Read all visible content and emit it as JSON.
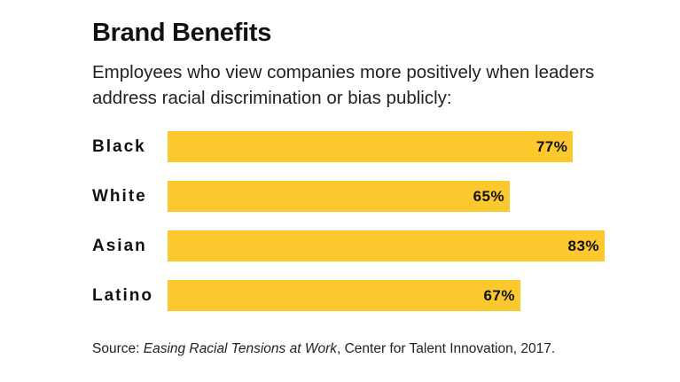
{
  "chart_data": {
    "type": "bar",
    "orientation": "horizontal",
    "title": "Brand Benefits",
    "subtitle_lines": [
      "Employees who view companies more positively when leaders",
      "address racial discrimination or bias publicly:"
    ],
    "categories": [
      "Black",
      "White",
      "Asian",
      "Latino"
    ],
    "values": [
      77,
      65,
      83,
      67
    ],
    "value_labels": [
      "77%",
      "65%",
      "83%",
      "67%"
    ],
    "unit": "%",
    "xlim": [
      0,
      100
    ],
    "grid": false,
    "legend": "none",
    "bar_color": "#fbc92e"
  },
  "source": {
    "prefix": "Source: ",
    "work": "Easing Racial Tensions at Work",
    "suffix": ", Center for Talent Innovation, 2017."
  }
}
